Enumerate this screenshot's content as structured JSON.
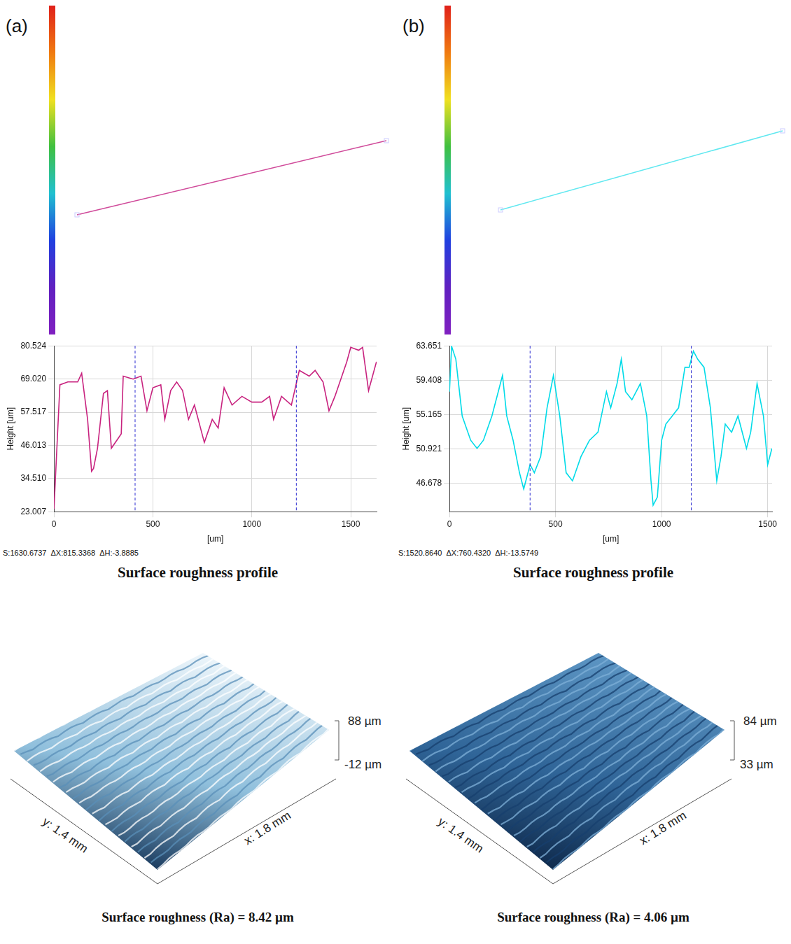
{
  "chart_data": [
    {
      "type": "line",
      "color": "#c8237f",
      "x_label": "[um]",
      "y_label": "Height [um]",
      "footer": "S:1630.6737  ΔX:815.3368  ΔH:-3.8885",
      "x": [
        0,
        30,
        70,
        120,
        140,
        170,
        190,
        200,
        220,
        250,
        270,
        290,
        320,
        340,
        350,
        400,
        440,
        470,
        500,
        540,
        560,
        590,
        620,
        650,
        680,
        710,
        760,
        800,
        830,
        860,
        900,
        950,
        1000,
        1050,
        1090,
        1110,
        1150,
        1200,
        1240,
        1290,
        1320,
        1360,
        1390,
        1420,
        1440,
        1480,
        1500,
        1540,
        1560,
        1590,
        1630
      ],
      "values": [
        24,
        67,
        68,
        68,
        71,
        55,
        37,
        38,
        45,
        64,
        65,
        45,
        48,
        50,
        70,
        69,
        70,
        58,
        66,
        67,
        55,
        65,
        68,
        65,
        55,
        60,
        47,
        55,
        52,
        66,
        60,
        63,
        61,
        61,
        63,
        55,
        63,
        60,
        72,
        70,
        72,
        68,
        58,
        63,
        67,
        75,
        80,
        79,
        80,
        65,
        75
      ],
      "xlim": [
        0,
        1630.6737
      ],
      "ylim": [
        23.007,
        80.524
      ],
      "xticks": [
        0,
        500,
        1000,
        1500
      ],
      "yticks": [
        23.007,
        {
          "value": 34.51,
          "label": "34.510"
        },
        46.013,
        57.517,
        {
          "value": 69.02,
          "label": "69.020"
        },
        80.524
      ],
      "grid": true,
      "annotations": [
        {
          "x": 410,
          "color": "#2a2ad0",
          "line_style": "dashed"
        },
        {
          "x": 1225,
          "color": "#2a2ad0",
          "line_style": "dashed"
        }
      ]
    },
    {
      "type": "line",
      "color": "#00dbe8",
      "x_label": "[um]",
      "y_label": "Height [um]",
      "footer": "S:1520.8640  ΔX:760.4320  ΔH:-13.5749",
      "x": [
        0,
        10,
        30,
        60,
        100,
        130,
        160,
        200,
        230,
        250,
        270,
        300,
        330,
        350,
        380,
        400,
        430,
        460,
        490,
        520,
        550,
        580,
        620,
        660,
        700,
        740,
        760,
        790,
        810,
        830,
        860,
        900,
        930,
        950,
        960,
        980,
        1000,
        1020,
        1050,
        1080,
        1110,
        1130,
        1150,
        1170,
        1200,
        1230,
        1260,
        1280,
        1300,
        1330,
        1360,
        1400,
        1420,
        1450,
        1480,
        1500,
        1520
      ],
      "values": [
        58,
        63.6,
        62,
        55,
        52,
        51,
        52,
        55,
        58,
        60,
        55,
        52,
        48,
        46,
        49,
        48,
        50,
        56,
        60,
        55,
        48,
        47,
        50,
        52,
        53,
        58,
        56,
        59,
        62,
        58,
        57,
        59,
        55,
        47,
        44,
        45,
        52,
        54,
        55,
        56,
        61,
        61,
        63,
        62,
        61,
        56,
        47,
        50,
        54,
        53,
        55,
        51,
        53,
        59,
        55,
        49,
        51
      ],
      "xlim": [
        0,
        1520.864
      ],
      "ylim": [
        43.2,
        63.651
      ],
      "xticks": [
        0,
        500,
        1000,
        1500
      ],
      "yticks": [
        46.678,
        50.921,
        55.165,
        59.408,
        63.651
      ],
      "grid": true,
      "annotations": [
        {
          "x": 380,
          "color": "#2a2ad0",
          "line_style": "dashed"
        },
        {
          "x": 1140,
          "color": "#2a2ad0",
          "line_style": "dashed"
        }
      ]
    }
  ],
  "panels": [
    {
      "letter": "(a)",
      "profile_caption": "Surface roughness profile",
      "surface": {
        "z_top": "88 µm",
        "z_bottom": "-12 µm",
        "y_axis": "y: 1.4 mm",
        "x_axis": "x: 1.8 mm",
        "caption": "Surface roughness (Ra) = 8.42 µm"
      }
    },
    {
      "letter": "(b)",
      "profile_caption": "Surface roughness profile",
      "surface": {
        "z_top": "84 µm",
        "z_bottom": "33 µm",
        "y_axis": "y: 1.4 mm",
        "x_axis": "x: 1.8 mm",
        "caption": "Surface roughness (Ra) = 4.06 µm"
      }
    }
  ]
}
